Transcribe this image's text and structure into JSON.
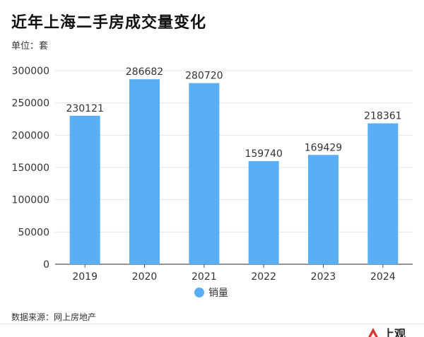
{
  "header": {
    "title": "近年上海二手房成交量变化",
    "unit": "单位：套"
  },
  "footer": {
    "source": "数据来源：网上房地产",
    "brand_text": "上观"
  },
  "colors": {
    "bar": "#5AAEF3",
    "grid": "#e4e4e4",
    "axis": "#555555",
    "brand": "#d9322b"
  },
  "chart_data": {
    "type": "bar",
    "title": "近年上海二手房成交量变化",
    "ylabel": "单位：套",
    "xlabel": "",
    "categories": [
      "2019",
      "2020",
      "2021",
      "2022",
      "2023",
      "2024"
    ],
    "series": [
      {
        "name": "销量",
        "values": [
          230121,
          286682,
          280720,
          159740,
          169429,
          218361
        ]
      }
    ],
    "ylim": [
      0,
      300000
    ],
    "yticks": [
      0,
      50000,
      100000,
      150000,
      200000,
      250000,
      300000
    ],
    "grid": true,
    "legend": "bottom-center"
  }
}
